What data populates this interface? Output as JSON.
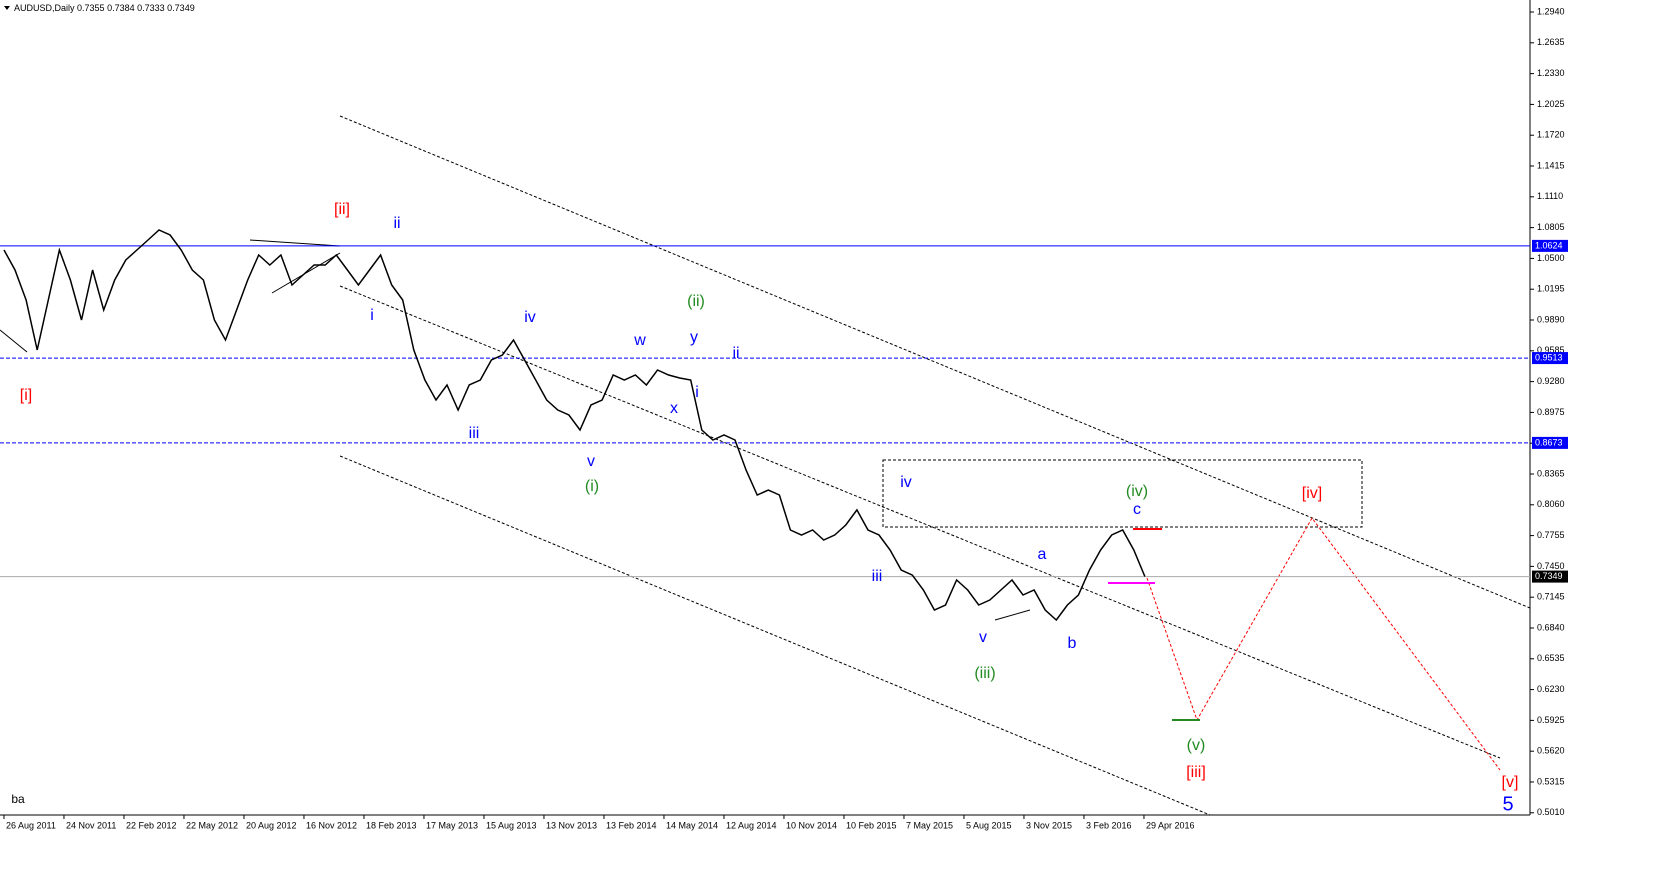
{
  "chart_data": {
    "type": "line",
    "symbol": "AUDUSD,Daily",
    "ohlc": [
      0.7355,
      0.7384,
      0.7333,
      0.7349
    ],
    "color": "#000000",
    "xlim": [
      -4.3,
      1653.2
    ],
    "ylim": [
      0.4988,
      1.3059
    ],
    "xticks": [
      {
        "value": 0,
        "label": "26 Aug 2011"
      },
      {
        "value": 65,
        "label": "24 Nov 2011"
      },
      {
        "value": 130,
        "label": "22 Feb 2012"
      },
      {
        "value": 195,
        "label": "22 May 2012"
      },
      {
        "value": 260,
        "label": "20 Aug 2012"
      },
      {
        "value": 325,
        "label": "16 Nov 2012"
      },
      {
        "value": 390,
        "label": "18 Feb 2013"
      },
      {
        "value": 455,
        "label": "17 May 2013"
      },
      {
        "value": 520,
        "label": "15 Aug 2013"
      },
      {
        "value": 585,
        "label": "13 Nov 2013"
      },
      {
        "value": 650,
        "label": "13 Feb 2014"
      },
      {
        "value": 715,
        "label": "14 May 2014"
      },
      {
        "value": 780,
        "label": "12 Aug 2014"
      },
      {
        "value": 845,
        "label": "10 Nov 2014"
      },
      {
        "value": 910,
        "label": "10 Feb 2015"
      },
      {
        "value": 975,
        "label": "7 May 2015"
      },
      {
        "value": 1040,
        "label": "5 Aug 2015"
      },
      {
        "value": 1105,
        "label": "3 Nov 2015"
      },
      {
        "value": 1170,
        "label": "3 Feb 2016"
      },
      {
        "value": 1235,
        "label": "29 Apr 2016"
      }
    ],
    "yticks": [
      {
        "value": 1.294,
        "label": "1.2940"
      },
      1.2635,
      {
        "value": 1.233,
        "label": "1.2330"
      },
      1.2025,
      {
        "value": 1.172,
        "label": "1.1720"
      },
      1.1415,
      {
        "value": 1.111,
        "label": "1.1110"
      },
      1.0805,
      {
        "value": 1.05,
        "label": "1.0500"
      },
      1.0195,
      {
        "value": 0.989,
        "label": "0.9890"
      },
      0.9585,
      {
        "value": 0.928,
        "label": "0.9280"
      },
      0.8975,
      {
        "value": 0.867,
        "label": "0.8670"
      },
      0.8365,
      {
        "value": 0.806,
        "label": "0.8060"
      },
      0.7755,
      {
        "value": 0.745,
        "label": "0.7450"
      },
      0.7145,
      {
        "value": 0.684,
        "label": "0.6840"
      },
      0.6535,
      {
        "value": 0.623,
        "label": "0.6230"
      },
      0.5925,
      {
        "value": 0.562,
        "label": "0.5620"
      },
      0.5315,
      {
        "value": 0.501,
        "label": "0.5010"
      }
    ],
    "levels": [
      {
        "value": 1.0624,
        "color": "#0000ff",
        "dashed": false
      },
      {
        "value": 0.9513,
        "color": "#0000ff",
        "dashed": true
      },
      {
        "value": 0.8673,
        "color": "#0000ff",
        "dashed": true
      },
      {
        "value": 0.7349,
        "color": "#000000",
        "dashed": false
      }
    ],
    "x": [
      0,
      12,
      24,
      36,
      48,
      60,
      72,
      84,
      96,
      108,
      120,
      132,
      144,
      156,
      168,
      180,
      192,
      204,
      216,
      228,
      240,
      252,
      264,
      276,
      288,
      300,
      312,
      324,
      336,
      348,
      360,
      372,
      384,
      396,
      408,
      420,
      432,
      444,
      456,
      468,
      480,
      492,
      504,
      516,
      528,
      540,
      552,
      564,
      576,
      588,
      600,
      612,
      624,
      636,
      648,
      660,
      672,
      684,
      696,
      708,
      720,
      732,
      744,
      756,
      768,
      780,
      792,
      804,
      816,
      828,
      840,
      852,
      864,
      876,
      888,
      900,
      912,
      924,
      936,
      948,
      960,
      972,
      984,
      996,
      1008,
      1020,
      1032,
      1044,
      1056,
      1068,
      1080,
      1092,
      1104,
      1116,
      1128,
      1140,
      1152,
      1164,
      1176,
      1188,
      1200,
      1212,
      1224,
      1236
    ],
    "values": [
      1.0583,
      1.0385,
      1.0088,
      0.9593,
      1.0088,
      1.0583,
      1.0286,
      0.989,
      1.0385,
      0.9989,
      1.0286,
      1.0484,
      1.0583,
      1.0682,
      1.0781,
      1.0732,
      1.0583,
      1.0385,
      1.0286,
      0.989,
      0.9692,
      0.9989,
      1.0286,
      1.0534,
      1.0435,
      1.0534,
      1.0237,
      1.0336,
      1.0435,
      1.0435,
      1.0534,
      1.0385,
      1.0237,
      1.0385,
      1.0534,
      1.0237,
      1.0088,
      0.9593,
      0.9296,
      0.9098,
      0.9246,
      0.8999,
      0.9246,
      0.9296,
      0.9494,
      0.9543,
      0.9692,
      0.9494,
      0.9296,
      0.9098,
      0.8999,
      0.8949,
      0.8801,
      0.9048,
      0.9098,
      0.9345,
      0.9296,
      0.9345,
      0.9246,
      0.9395,
      0.9345,
      0.9316,
      0.9296,
      0.8801,
      0.8702,
      0.8751,
      0.8702,
      0.8404,
      0.8157,
      0.8206,
      0.8157,
      0.781,
      0.7761,
      0.781,
      0.7711,
      0.7761,
      0.786,
      0.8009,
      0.781,
      0.7761,
      0.7612,
      0.7414,
      0.7364,
      0.7216,
      0.7018,
      0.7068,
      0.7315,
      0.7216,
      0.7068,
      0.7117,
      0.7216,
      0.7315,
      0.7167,
      0.7216,
      0.7018,
      0.6919,
      0.7068,
      0.7167,
      0.7414,
      0.7612,
      0.7761,
      0.781,
      0.7612,
      0.7349
    ],
    "annotations": [
      {
        "text": "[i]",
        "color": "#ff0000"
      },
      {
        "text": "[ii]",
        "color": "#ff0000"
      },
      {
        "text": "ii",
        "color": "#0000ff"
      },
      {
        "text": "i",
        "color": "#0000ff"
      },
      {
        "text": "iv",
        "color": "#0000ff"
      },
      {
        "text": "iii",
        "color": "#0000ff"
      },
      {
        "text": "v",
        "color": "#0000ff"
      },
      {
        "text": "(i)",
        "color": "#228b22"
      },
      {
        "text": "w",
        "color": "#0000ff"
      },
      {
        "text": "y",
        "color": "#0000ff"
      },
      {
        "text": "(ii)",
        "color": "#228b22"
      },
      {
        "text": "x",
        "color": "#0000ff"
      },
      {
        "text": "i",
        "color": "#0000ff"
      },
      {
        "text": "ii",
        "color": "#0000ff"
      },
      {
        "text": "iii",
        "color": "#0000ff"
      },
      {
        "text": "iv",
        "color": "#0000ff"
      },
      {
        "text": "v",
        "color": "#0000ff"
      },
      {
        "text": "(iii)",
        "color": "#228b22"
      },
      {
        "text": "a",
        "color": "#0000ff"
      },
      {
        "text": "b",
        "color": "#0000ff"
      },
      {
        "text": "(iv)",
        "color": "#228b22"
      },
      {
        "text": "c",
        "color": "#0000ff"
      },
      {
        "text": "[iv]",
        "color": "#ff0000"
      },
      {
        "text": "(v)",
        "color": "#228b22"
      },
      {
        "text": "[iii]",
        "color": "#ff0000"
      },
      {
        "text": "[v]",
        "color": "#ff0000"
      },
      {
        "text": "5",
        "color": "#0000ff"
      },
      {
        "text": "ba",
        "color": "#000000"
      }
    ]
  }
}
